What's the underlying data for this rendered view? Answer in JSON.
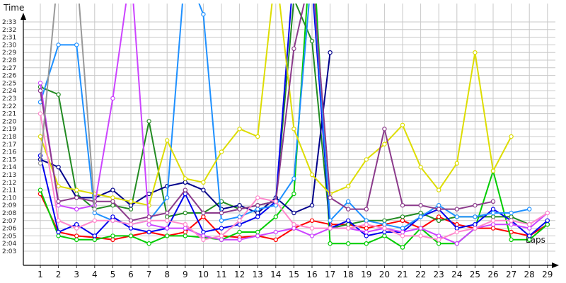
{
  "chart_data": {
    "type": "line",
    "x_axis_title": "Laps",
    "y_axis_title": "Time",
    "x_ticks": [
      1,
      2,
      3,
      4,
      5,
      6,
      7,
      8,
      9,
      10,
      11,
      12,
      13,
      14,
      15,
      16,
      17,
      18,
      19,
      20,
      21,
      22,
      23,
      24,
      25,
      26,
      27,
      28,
      29
    ],
    "y_ticks": [
      "2:03",
      "2:04",
      "2:05",
      "2:06",
      "2:07",
      "2:08",
      "2:09",
      "2:10",
      "2:11",
      "2:12",
      "2:13",
      "2:14",
      "2:15",
      "2:16",
      "2:17",
      "2:18",
      "2:19",
      "2:20",
      "2:21",
      "2:22",
      "2:23",
      "2:24",
      "2:25",
      "2:26",
      "2:27",
      "2:28",
      "2:29",
      "2:30",
      "2:31",
      "2:32",
      "2:33"
    ],
    "y_range": [
      "2:02.0",
      "2:35.5"
    ],
    "grid": true,
    "series": [
      {
        "color": "#ff0000",
        "x": [
          1,
          2,
          3,
          4,
          5,
          6,
          7,
          8,
          9,
          10,
          11,
          12,
          13,
          14,
          15,
          16,
          17,
          18,
          19,
          20,
          21,
          22,
          23,
          24,
          25,
          26,
          27,
          28,
          29
        ],
        "y": [
          "2:10.5",
          "2:05.5",
          "2:05.0",
          "2:04.8",
          "2:04.5",
          "2:05.0",
          "2:05.5",
          "2:05.0",
          "2:05.5",
          "2:07.5",
          "2:05.0",
          "2:04.8",
          "2:05.0",
          "2:04.5",
          "2:06.0",
          "2:07.0",
          "2:06.5",
          "2:06.5",
          "2:06.0",
          "2:06.5",
          "2:07.0",
          "2:06.0",
          "2:07.5",
          "2:06.5",
          "2:06.0",
          "2:06.0",
          "2:05.5",
          "2:05.0",
          "2:06.5"
        ]
      },
      {
        "color": "#00cc00",
        "x": [
          1,
          2,
          3,
          4,
          5,
          6,
          7,
          8,
          9,
          10,
          11,
          12,
          13,
          14,
          15,
          16,
          17,
          18,
          19,
          20,
          21,
          22,
          23,
          24,
          25,
          26,
          27,
          28,
          29
        ],
        "y": [
          "2:11.0",
          "2:05.0",
          "2:04.5",
          "2:04.5",
          "2:05.0",
          "2:05.0",
          "2:04.0",
          "2:05.0",
          "2:05.0",
          "2:04.8",
          "2:04.5",
          "2:05.5",
          "2:05.5",
          "2:07.5",
          "2:10.5",
          "2:45.0",
          "2:04.0",
          "2:04.0",
          "2:04.0",
          "2:05.0",
          "2:03.5",
          "2:06.0",
          "2:04.0",
          "2:04.0",
          "2:06.0",
          "2:13.5",
          "2:04.5",
          "2:04.5",
          "2:06.5"
        ]
      },
      {
        "color": "#228b22",
        "x": [
          1,
          2,
          3,
          4,
          5,
          6,
          7,
          8,
          9,
          10,
          11,
          12,
          13,
          14,
          15,
          16,
          17,
          18,
          19,
          20,
          21,
          22,
          23,
          24,
          25,
          26,
          27,
          28
        ],
        "y": [
          "2:24.5",
          "2:23.5",
          "2:10.5",
          "2:08.5",
          "2:09.0",
          "2:08.5",
          "2:20.0",
          "2:07.5",
          "2:08.0",
          "2:08.0",
          "2:09.5",
          "2:08.5",
          "2:09.0",
          "2:09.5",
          "2:36.0",
          "2:30.5",
          "2:06.0",
          "2:06.5",
          "2:07.0",
          "2:07.0",
          "2:07.5",
          "2:08.0",
          "2:07.0",
          "2:07.5",
          "2:07.5",
          "2:07.5",
          "2:07.5",
          "2:06.5"
        ]
      },
      {
        "color": "#00008b",
        "x": [
          1,
          2,
          3,
          4,
          5,
          6,
          7,
          8,
          9,
          10,
          11,
          12,
          13,
          14,
          15,
          16,
          17
        ],
        "y": [
          "2:15.0",
          "2:14.0",
          "2:10.0",
          "2:10.0",
          "2:11.0",
          "2:09.0",
          "2:10.5",
          "2:11.5",
          "2:12.0",
          "2:11.0",
          "2:08.5",
          "2:09.0",
          "2:08.0",
          "2:10.0",
          "2:08.0",
          "2:09.0",
          "2:29.0"
        ]
      },
      {
        "color": "#0000ee",
        "x": [
          1,
          2,
          3,
          4,
          5,
          6,
          7,
          8,
          9,
          10,
          11,
          12,
          13,
          14,
          15,
          16,
          17,
          18,
          19,
          20,
          21,
          22,
          23,
          24,
          25,
          26,
          27,
          28,
          29
        ],
        "y": [
          "2:15.5",
          "2:05.5",
          "2:06.5",
          "2:05.0",
          "2:07.5",
          "2:06.0",
          "2:05.5",
          "2:06.0",
          "2:10.5",
          "2:05.5",
          "2:06.0",
          "2:06.5",
          "2:07.5",
          "2:09.5",
          "2:40.0",
          "2:38.0",
          "2:06.0",
          "2:07.0",
          "2:05.0",
          "2:05.5",
          "2:05.5",
          "2:07.5",
          "2:08.5",
          "2:06.0",
          "2:06.5",
          "2:08.5",
          "2:07.0",
          "2:05.0",
          "2:07.0"
        ]
      },
      {
        "color": "#1e90ff",
        "x": [
          1,
          2,
          3,
          4,
          5,
          6,
          7,
          8,
          9,
          10,
          11,
          12,
          13,
          14,
          15,
          16,
          17,
          18,
          19,
          20,
          21,
          22,
          23,
          24,
          25,
          26,
          27,
          28
        ],
        "y": [
          "2:22.5",
          "2:30.0",
          "2:30.0",
          "2:08.0",
          "2:07.0",
          "2:06.5",
          "2:07.0",
          "2:10.0",
          "2:40.0",
          "2:34.0",
          "2:07.0",
          "2:07.5",
          "2:08.5",
          "2:09.0",
          "2:12.5",
          "2:40.0",
          "2:07.0",
          "2:09.5",
          "2:07.0",
          "2:06.5",
          "2:06.0",
          "2:07.5",
          "2:09.0",
          "2:07.5",
          "2:07.5",
          "2:08.0",
          "2:08.0",
          "2:08.5"
        ]
      },
      {
        "color": "#dddd00",
        "x": [
          1,
          2,
          3,
          4,
          5,
          6,
          7,
          8,
          9,
          10,
          11,
          12,
          13,
          14,
          15,
          16,
          17,
          18,
          19,
          20,
          21,
          22,
          23,
          24,
          25,
          26,
          27
        ],
        "y": [
          "2:18.0",
          "2:11.5",
          "2:11.0",
          "2:10.5",
          "2:10.0",
          "2:09.5",
          "2:09.0",
          "2:17.5",
          "2:12.5",
          "2:12.0",
          "2:16.0",
          "2:19.0",
          "2:18.0",
          "2:40.0",
          "2:19.0",
          "2:13.0",
          "2:10.5",
          "2:11.5",
          "2:15.0",
          "2:17.0",
          "2:19.5",
          "2:14.0",
          "2:11.0",
          "2:14.5",
          "2:29.0",
          "2:13.5",
          "2:18.0"
        ]
      },
      {
        "color": "#cc44ff",
        "x": [
          1,
          2,
          3,
          4,
          5,
          6,
          7,
          8,
          9,
          10,
          11,
          12,
          13,
          14,
          15,
          16,
          17,
          18,
          19,
          20,
          21,
          22,
          23,
          24,
          25,
          26,
          27,
          28,
          29
        ],
        "y": [
          "2:25.0",
          "2:09.0",
          "2:08.5",
          "2:09.0",
          "2:23.0",
          "2:40.0",
          "2:06.5",
          "2:06.0",
          "2:06.0",
          "2:05.0",
          "2:04.5",
          "2:04.5",
          "2:05.0",
          "2:05.5",
          "2:06.0",
          "2:05.0",
          "2:06.0",
          "2:06.0",
          "2:05.5",
          "2:06.0",
          "2:05.5",
          "2:06.0",
          "2:05.0",
          "2:04.0",
          "2:06.0",
          "2:06.5",
          "2:06.5",
          "2:06.0",
          "2:08.0"
        ]
      },
      {
        "color": "#8b3a8b",
        "x": [
          1,
          2,
          3,
          4,
          5,
          6,
          7,
          8,
          9,
          10,
          11,
          12,
          13,
          14,
          15,
          16,
          17,
          18,
          19,
          20,
          21,
          22,
          23,
          24,
          25,
          26
        ],
        "y": [
          "2:24.0",
          "2:09.5",
          "2:10.0",
          "2:09.5",
          "2:09.5",
          "2:07.0",
          "2:07.5",
          "2:08.0",
          "2:11.0",
          "2:08.0",
          "2:08.0",
          "2:08.5",
          "2:09.0",
          "2:09.5",
          "2:29.5",
          "2:40.0",
          "2:10.0",
          "2:08.5",
          "2:08.5",
          "2:19.0",
          "2:09.0",
          "2:09.0",
          "2:08.5",
          "2:08.5",
          "2:09.0",
          "2:09.5"
        ]
      },
      {
        "color": "#ff88cc",
        "x": [
          1,
          2,
          3,
          4,
          5,
          6,
          7,
          8,
          9,
          10,
          11,
          12,
          13,
          14,
          15,
          16,
          17,
          18,
          19,
          20,
          21,
          22,
          23,
          24,
          25,
          26,
          27,
          28,
          29
        ],
        "y": [
          "2:21.0",
          "2:07.0",
          "2:06.0",
          "2:07.0",
          "2:07.0",
          "2:06.5",
          "2:07.0",
          "2:07.0",
          "2:06.5",
          "2:04.5",
          "2:05.0",
          "2:07.0",
          "2:10.0",
          "2:09.5",
          "2:06.5",
          "2:06.0",
          "2:06.0",
          "2:06.0",
          "2:06.5",
          "2:06.0",
          "2:05.0",
          "2:05.0",
          "2:04.5",
          "2:05.5",
          "2:06.0",
          "2:07.0",
          "2:07.0",
          "2:06.5",
          "2:08.0"
        ]
      },
      {
        "color": "#999999",
        "x": [
          1,
          2,
          3,
          4
        ],
        "y": [
          "2:14.5",
          "2:40.0",
          "2:40.0",
          "2:08.5"
        ]
      }
    ]
  }
}
